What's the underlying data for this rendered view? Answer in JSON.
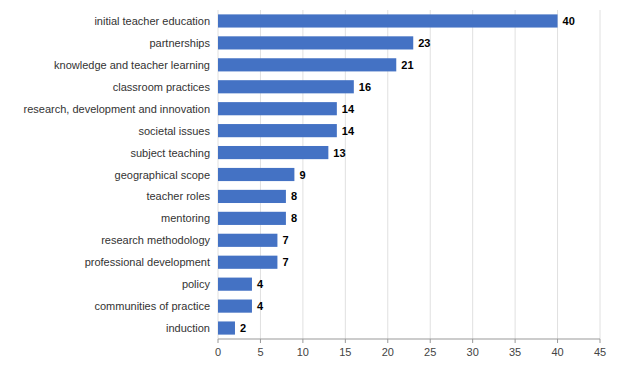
{
  "chart_data": {
    "type": "bar",
    "orientation": "horizontal",
    "categories": [
      "induction",
      "communities of practice",
      "policy",
      "professional development",
      "research methodology",
      "mentoring",
      "teacher roles",
      "geographical scope",
      "subject teaching",
      "societal issues",
      "research, development and innovation",
      "classroom practices",
      "knowledge and teacher learning",
      "partnerships",
      "initial teacher education"
    ],
    "values": [
      2,
      4,
      4,
      7,
      7,
      8,
      8,
      9,
      13,
      14,
      14,
      16,
      21,
      23,
      40
    ],
    "color": "#4472C4",
    "xlim": [
      0,
      45
    ],
    "xticks": [
      0,
      5,
      10,
      15,
      20,
      25,
      30,
      35,
      40,
      45
    ],
    "grid": true,
    "data_labels": true
  }
}
